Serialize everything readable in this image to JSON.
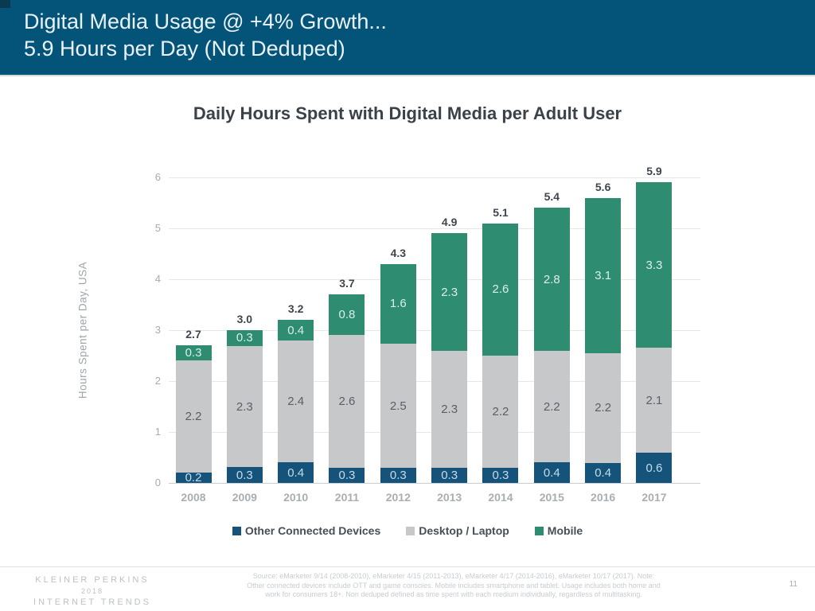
{
  "header": {
    "title_line1": "Digital Media Usage @ +4% Growth...",
    "title_line2": "5.9 Hours per Day (Not Deduped)"
  },
  "chart_data": {
    "type": "bar",
    "subtype": "stacked",
    "title": "Daily Hours Spent with Digital Media per Adult User",
    "xlabel": "",
    "ylabel": "Hours Spent per Day, USA",
    "ylim": [
      0,
      6
    ],
    "yticks": [
      0,
      1,
      2,
      3,
      4,
      5,
      6
    ],
    "grid": true,
    "legend_position": "bottom",
    "categories": [
      "2008",
      "2009",
      "2010",
      "2011",
      "2012",
      "2013",
      "2014",
      "2015",
      "2016",
      "2017"
    ],
    "series": [
      {
        "name": "Other Connected Devices",
        "color": "#15537B",
        "label_color": "#C3DCEC",
        "values": [
          0.2,
          0.3,
          0.4,
          0.3,
          0.3,
          0.3,
          0.3,
          0.4,
          0.4,
          0.6
        ]
      },
      {
        "name": "Desktop / Laptop",
        "color": "#C7C8CA",
        "label_color": "#5A5F64",
        "values": [
          2.2,
          2.3,
          2.4,
          2.6,
          2.5,
          2.3,
          2.2,
          2.2,
          2.2,
          2.1
        ]
      },
      {
        "name": "Mobile",
        "color": "#2E8C71",
        "label_color": "#D8F0E9",
        "values": [
          0.3,
          0.3,
          0.4,
          0.8,
          1.6,
          2.3,
          2.6,
          2.8,
          3.1,
          3.3
        ]
      }
    ],
    "totals": [
      2.7,
      3.0,
      3.2,
      3.7,
      4.3,
      4.9,
      5.1,
      5.4,
      5.6,
      5.9
    ]
  },
  "footer": {
    "logo_line1": "KLEINER PERKINS",
    "logo_line2": "2018",
    "logo_line3": "INTERNET TRENDS",
    "source_line1": "Source: eMarketer 9/14 (2008-2010), eMarketer 4/15 (2011-2013), eMarketer 4/17 (2014-2016), eMarketer 10/17 (2017).  Note:",
    "source_line2": "Other connected devices include OTT and game consoles. Mobile includes smartphone and tablet. Usage includes both home and",
    "source_line3": "work for consumers 18+. Non deduped defined as time spent with each medium individually, regardless of multitasking.",
    "page_number": "11"
  },
  "colors": {
    "banner_background": "#045379",
    "banner_text": "#EAF2F7",
    "chart_title_text": "#3A4149"
  }
}
